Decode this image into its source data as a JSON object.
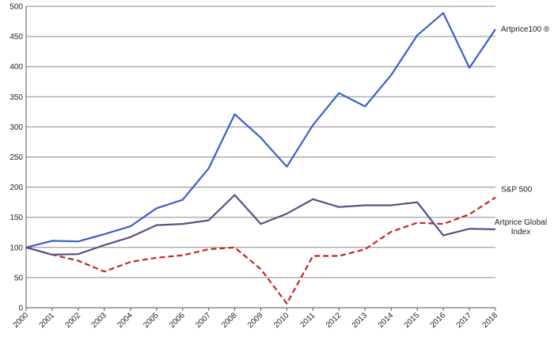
{
  "chart_data": {
    "type": "line",
    "title": "",
    "xlabel": "",
    "ylabel": "",
    "ylim": [
      0,
      500
    ],
    "yticks": [
      "0",
      "50",
      "100",
      "150",
      "200",
      "250",
      "300",
      "350",
      "400",
      "450",
      "500"
    ],
    "categories": [
      "2000",
      "2001",
      "2002",
      "2003",
      "2004",
      "2005",
      "2006",
      "2007",
      "2008",
      "2009",
      "2010",
      "2011",
      "2012",
      "2013",
      "2014",
      "2015",
      "2016",
      "2017",
      "2018"
    ],
    "grid": true,
    "legend": "end-of-line labels",
    "series": [
      {
        "name": "Artprice100 ®",
        "color": "#3a5fcd",
        "style": "solid",
        "values": [
          100,
          111,
          110,
          122,
          135,
          165,
          179,
          231,
          321,
          282,
          234,
          303,
          356,
          334,
          386,
          452,
          489,
          398,
          462
        ]
      },
      {
        "name": "S&P 500",
        "color": "#cc2222",
        "style": "dashed",
        "values": [
          100,
          88,
          78,
          60,
          76,
          83,
          87,
          97,
          100,
          64,
          7,
          86,
          86,
          97,
          126,
          141,
          139,
          155,
          183
        ]
      },
      {
        "name": "Artprice Global Index",
        "color": "#5a4f86",
        "style": "solid",
        "values": [
          100,
          88,
          89,
          104,
          117,
          137,
          139,
          145,
          187,
          139,
          156,
          180,
          167,
          170,
          170,
          175,
          120,
          131,
          130
        ]
      }
    ]
  }
}
